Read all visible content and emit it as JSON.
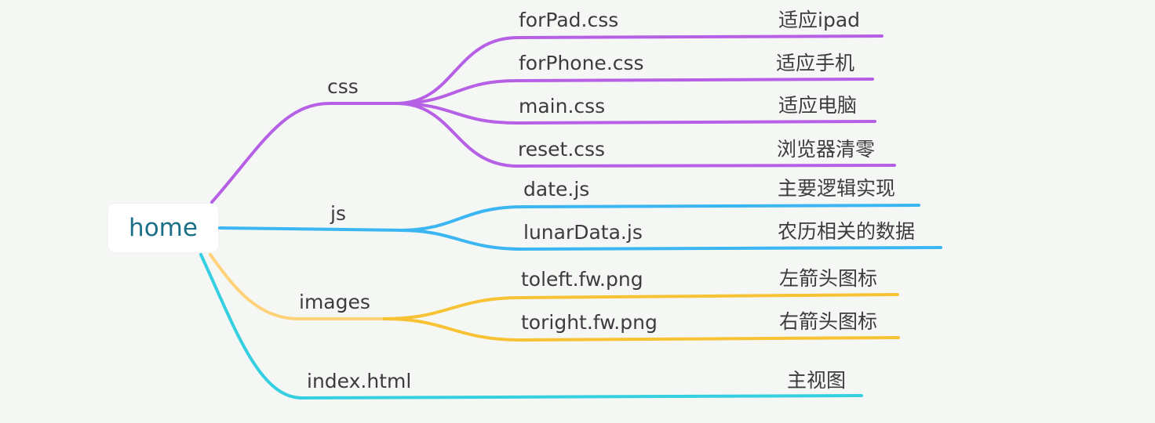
{
  "root": {
    "label": "home"
  },
  "branches": [
    {
      "key": "css",
      "label": "css",
      "color": "#b660e6",
      "children": [
        {
          "file": "forPad.css",
          "desc": "适应ipad"
        },
        {
          "file": "forPhone.css",
          "desc": "适应手机"
        },
        {
          "file": "main.css",
          "desc": "适应电脑"
        },
        {
          "file": "reset.css",
          "desc": "浏览器清零"
        }
      ]
    },
    {
      "key": "js",
      "label": "js",
      "color": "#3bb6f2",
      "children": [
        {
          "file": "date.js",
          "desc": "主要逻辑实现"
        },
        {
          "file": "lunarData.js",
          "desc": "农历相关的数据"
        }
      ]
    },
    {
      "key": "images",
      "label": "images",
      "color": "#f8c235",
      "children": [
        {
          "file": "toleft.fw.png",
          "desc": "左箭头图标"
        },
        {
          "file": "toright.fw.png",
          "desc": "右箭头图标"
        }
      ]
    },
    {
      "key": "index",
      "label": "index.html",
      "color": "#34cfe0",
      "desc": "主视图"
    }
  ]
}
